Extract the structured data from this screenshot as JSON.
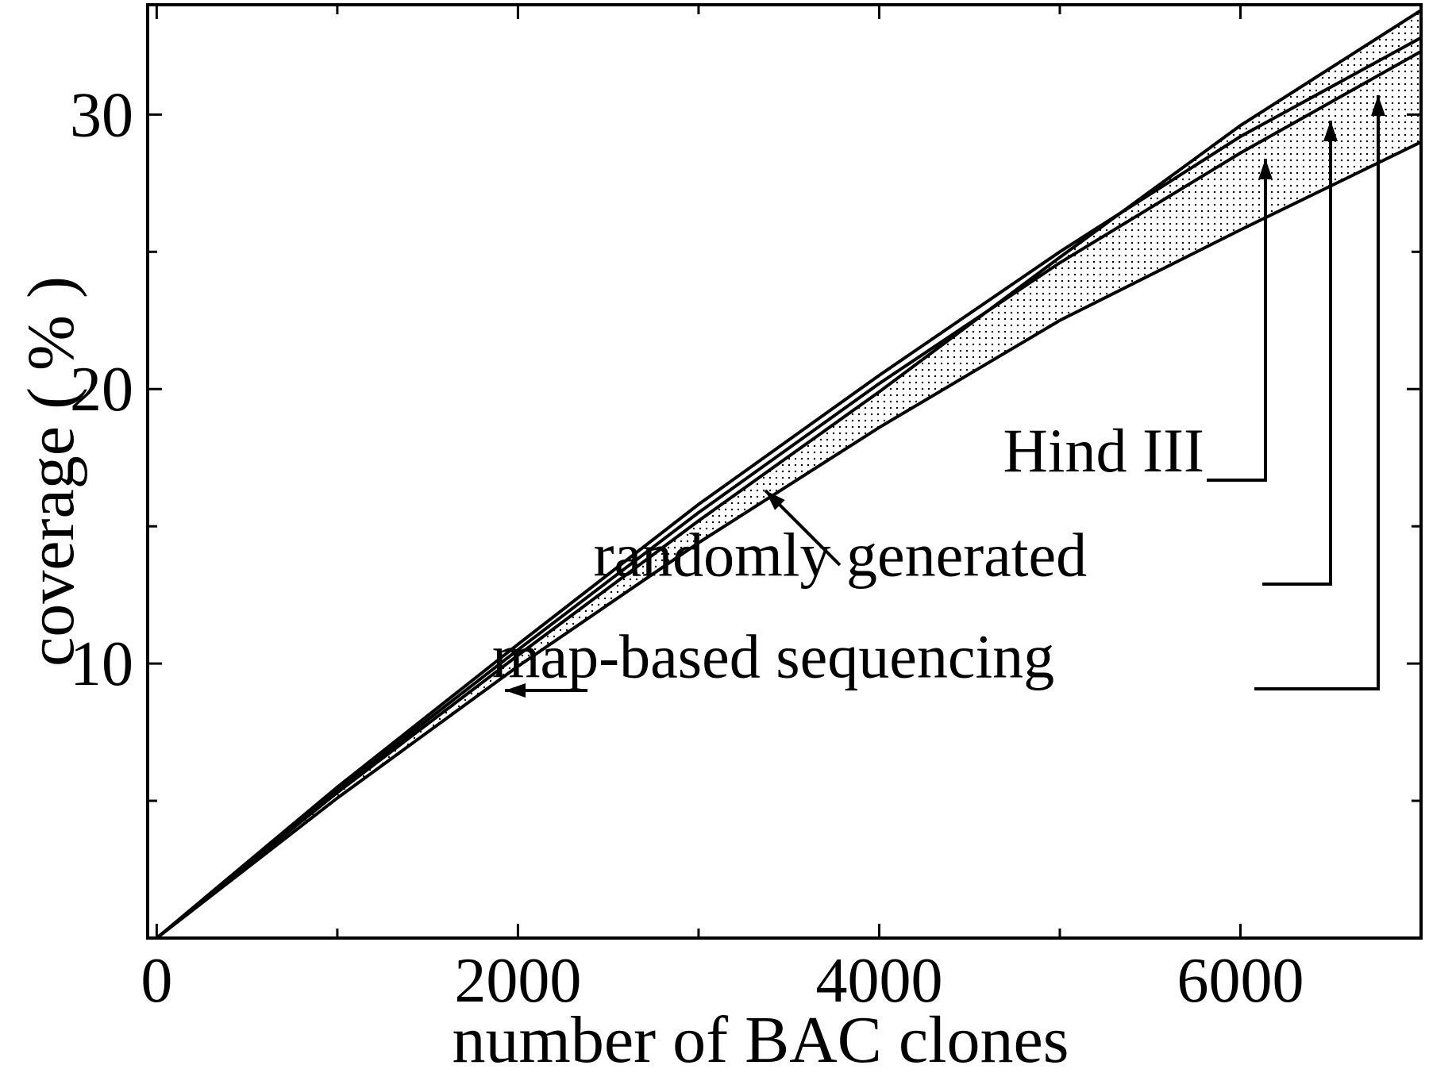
{
  "chart_data": {
    "type": "line",
    "title": "",
    "xlabel": "number of BAC clones",
    "ylabel": "coverage ( % )",
    "xlim": [
      -50,
      7000
    ],
    "ylim": [
      0,
      34
    ],
    "x_ticks_major": [
      0,
      2000,
      4000,
      6000
    ],
    "x_ticks_minor": [
      1000,
      3000,
      5000
    ],
    "y_ticks_major": [
      10,
      20,
      30
    ],
    "y_ticks_minor": [
      5,
      15,
      25
    ],
    "x_tick_labels": [
      "0",
      "2000",
      "4000",
      "6000"
    ],
    "y_tick_labels": [
      "10",
      "20",
      "30"
    ],
    "grid": false,
    "legend": "none",
    "shaded_band": {
      "between": [
        "upper",
        "lower"
      ],
      "pattern": "dotted"
    },
    "series": [
      {
        "key": "s1",
        "x": [
          0,
          1000,
          2000,
          3000,
          4000,
          5000,
          6000,
          7000
        ],
        "y": [
          0,
          5.5,
          10.7,
          15.8,
          20.5,
          25.0,
          29.2,
          32.8
        ]
      },
      {
        "key": "s2",
        "x": [
          0,
          1000,
          2000,
          3000,
          4000,
          5000,
          6000,
          7000
        ],
        "y": [
          0,
          5.3,
          10.3,
          15.2,
          19.9,
          24.8,
          29.6,
          33.8
        ]
      },
      {
        "key": "s3",
        "x": [
          0,
          1000,
          2000,
          3000,
          4000,
          5000,
          6000,
          7000
        ],
        "y": [
          0,
          5.4,
          10.5,
          15.5,
          20.2,
          24.6,
          28.6,
          32.3
        ]
      },
      {
        "key": "s4",
        "x": [
          0,
          1000,
          2000,
          3000,
          4000,
          5000,
          6000,
          7000
        ],
        "y": [
          0,
          5.1,
          9.9,
          14.4,
          18.6,
          22.5,
          25.8,
          29.0
        ]
      }
    ],
    "annotations": [
      {
        "text": "Hind III",
        "x": 5800,
        "y": 17
      },
      {
        "text": "randomly generated",
        "x": 5150,
        "y": 13.2
      },
      {
        "text": "map-based sequencing",
        "x": 4970,
        "y": 9.5
      }
    ]
  }
}
